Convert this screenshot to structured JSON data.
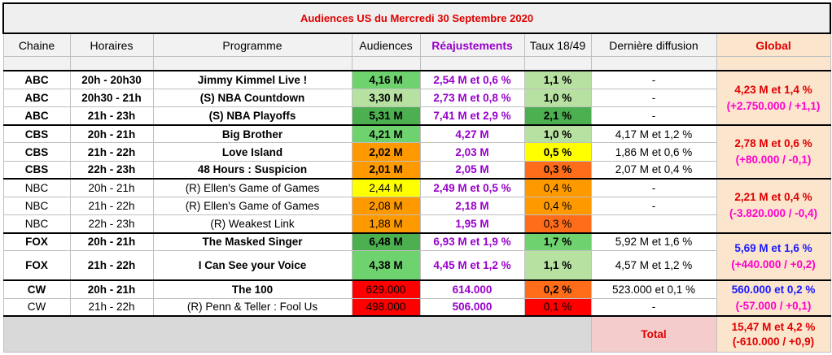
{
  "title": "Audiences US du Mercredi 30 Septembre 2020",
  "headers": {
    "chaine": "Chaine",
    "horaires": "Horaires",
    "programme": "Programme",
    "audiences": "Audiences",
    "reajustements": "Réajustements",
    "taux": "Taux 18/49",
    "derniere": "Dernière diffusion",
    "global": "Global"
  },
  "rows": [
    {
      "chaine": "ABC",
      "horaires": "20h - 20h30",
      "programme": "Jimmy Kimmel Live !",
      "audiences": "4,16 M",
      "reaj": "2,54 M et 0,6 %",
      "taux": "1,1 %",
      "derniere": "-"
    },
    {
      "chaine": "ABC",
      "horaires": "20h30 - 21h",
      "programme": "(S) NBA Countdown",
      "audiences": "3,30 M",
      "reaj": "2,73 M et 0,8 %",
      "taux": "1,0 %",
      "derniere": "-"
    },
    {
      "chaine": "ABC",
      "horaires": "21h - 23h",
      "programme": "(S) NBA Playoffs",
      "audiences": "5,31 M",
      "reaj": "7,41 M et 2,9 %",
      "taux": "2,1 %",
      "derniere": "-"
    },
    {
      "chaine": "CBS",
      "horaires": "20h - 21h",
      "programme": "Big Brother",
      "audiences": "4,21 M",
      "reaj": "4,27 M",
      "taux": "1,0 %",
      "derniere": "4,17 M et 1,2 %"
    },
    {
      "chaine": "CBS",
      "horaires": "21h - 22h",
      "programme": "Love Island",
      "audiences": "2,02 M",
      "reaj": "2,03 M",
      "taux": "0,5 %",
      "derniere": "1,86 M et 0,6 %"
    },
    {
      "chaine": "CBS",
      "horaires": "22h - 23h",
      "programme": "48 Hours : Suspicion",
      "audiences": "2,01 M",
      "reaj": "2,05 M",
      "taux": "0,3 %",
      "derniere": "2,07 M et 0,4 %"
    },
    {
      "chaine": "NBC",
      "horaires": "20h - 21h",
      "programme": "(R) Ellen's Game of Games",
      "audiences": "2,44 M",
      "reaj": "2,49 M et 0,5 %",
      "taux": "0,4 %",
      "derniere": "-"
    },
    {
      "chaine": "NBC",
      "horaires": "21h - 22h",
      "programme": "(R) Ellen's Game of Games",
      "audiences": "2,08 M",
      "reaj": "2,18 M",
      "taux": "0,4 %",
      "derniere": "-"
    },
    {
      "chaine": "NBC",
      "horaires": "22h - 23h",
      "programme": "(R) Weakest Link",
      "audiences": "1,88 M",
      "reaj": "1,95 M",
      "taux": "0,3 %",
      "derniere": ""
    },
    {
      "chaine": "FOX",
      "horaires": "20h - 21h",
      "programme": "The Masked Singer",
      "audiences": "6,48 M",
      "reaj": "6,93 M et 1,9 %",
      "taux": "1,7 %",
      "derniere": "5,92 M et 1,6 %"
    },
    {
      "chaine": "FOX",
      "horaires": "21h - 22h",
      "programme": "I Can See your Voice",
      "audiences": "4,38 M",
      "reaj": "4,45 M et 1,2 %",
      "taux": "1,1 %",
      "derniere": "4,57 M et 1,2 %"
    },
    {
      "chaine": "CW",
      "horaires": "20h - 21h",
      "programme": "The 100",
      "audiences": "629.000",
      "reaj": "614.000",
      "taux": "0,2 %",
      "derniere": "523.000 et 0,1 %"
    },
    {
      "chaine": "CW",
      "horaires": "21h - 22h",
      "programme": "(R) Penn & Teller : Fool Us",
      "audiences": "498.000",
      "reaj": "506.000",
      "taux": "0,1 %",
      "derniere": "-"
    }
  ],
  "globals": {
    "abc": {
      "value": "4,23 M et 1,4 %",
      "diff": "(+2.750.000 / +1,1)"
    },
    "cbs": {
      "value": "2,78 M et 0,6 %",
      "diff": "(+80.000 / -0,1)"
    },
    "nbc": {
      "value": "2,21 M et 0,4 %",
      "diff": "(-3.820.000 / -0,4)"
    },
    "fox": {
      "value": "5,69 M et 1,6 %",
      "diff": "(+440.000 / +0,2)"
    },
    "cw": {
      "value": "560.000 et 0,2 %",
      "diff": "(-57.000 / +0,1)"
    }
  },
  "total": {
    "label": "Total",
    "value": "15,47 M et 4,2 %",
    "diff": "(-610.000 / +0,9)"
  },
  "colors": {
    "green_light": "#b7e1a1",
    "green_mid": "#6ed36e",
    "green_dark": "#4caf50",
    "yellow": "#ffff00",
    "orange": "#ff9900",
    "orange_dark": "#ff6d1a",
    "red": "#ff0000",
    "global_bg": "#fce5cd",
    "total_bg": "#f4cccc"
  },
  "cell_colors": {
    "audiences": [
      "green_mid",
      "green_light",
      "green_dark",
      "green_mid",
      "orange",
      "orange",
      "yellow",
      "orange",
      "orange",
      "green_dark",
      "green_mid",
      "red",
      "red"
    ],
    "taux": [
      "green_light",
      "green_light",
      "green_dark",
      "green_light",
      "yellow",
      "orange_dark",
      "orange",
      "orange",
      "orange_dark",
      "green_mid",
      "green_light",
      "orange_dark",
      "red"
    ]
  }
}
